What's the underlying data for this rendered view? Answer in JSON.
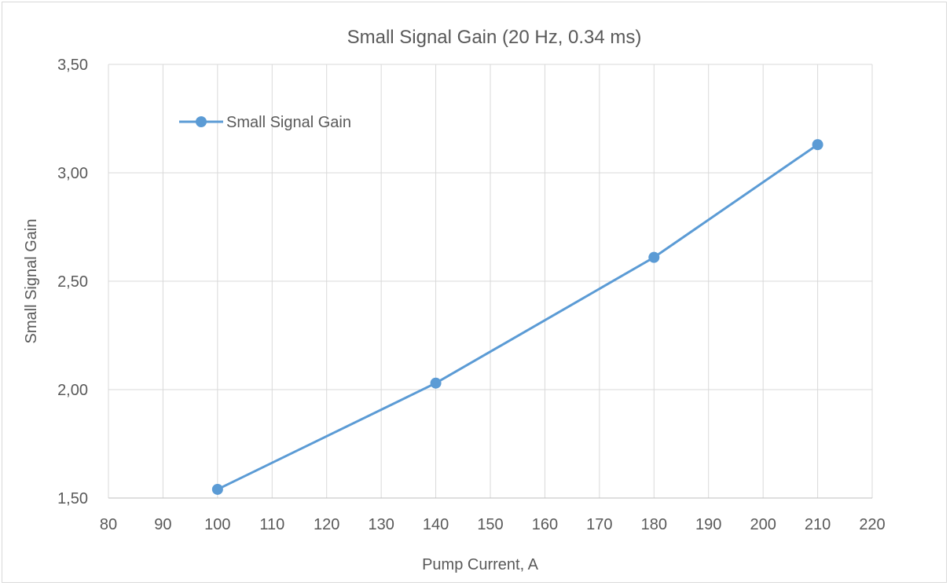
{
  "chart_data": {
    "type": "line",
    "title": "Small Signal Gain (20 Hz, 0.34 ms)",
    "xlabel": "Pump Current, A",
    "ylabel": "Small Signal Gain",
    "xlim": [
      80,
      220
    ],
    "ylim": [
      1.5,
      3.5
    ],
    "xticks": [
      "80",
      "90",
      "100",
      "110",
      "120",
      "130",
      "140",
      "150",
      "160",
      "170",
      "180",
      "190",
      "200",
      "210",
      "220"
    ],
    "yticks": [
      "1,50",
      "2,00",
      "2,50",
      "3,00",
      "3,50"
    ],
    "grid": true,
    "legend": "top-left",
    "series": [
      {
        "name": "Small Signal Gain",
        "color": "#5b9bd5",
        "x": [
          100,
          140,
          180,
          210
        ],
        "y": [
          1.54,
          2.03,
          2.61,
          3.13
        ]
      }
    ]
  }
}
